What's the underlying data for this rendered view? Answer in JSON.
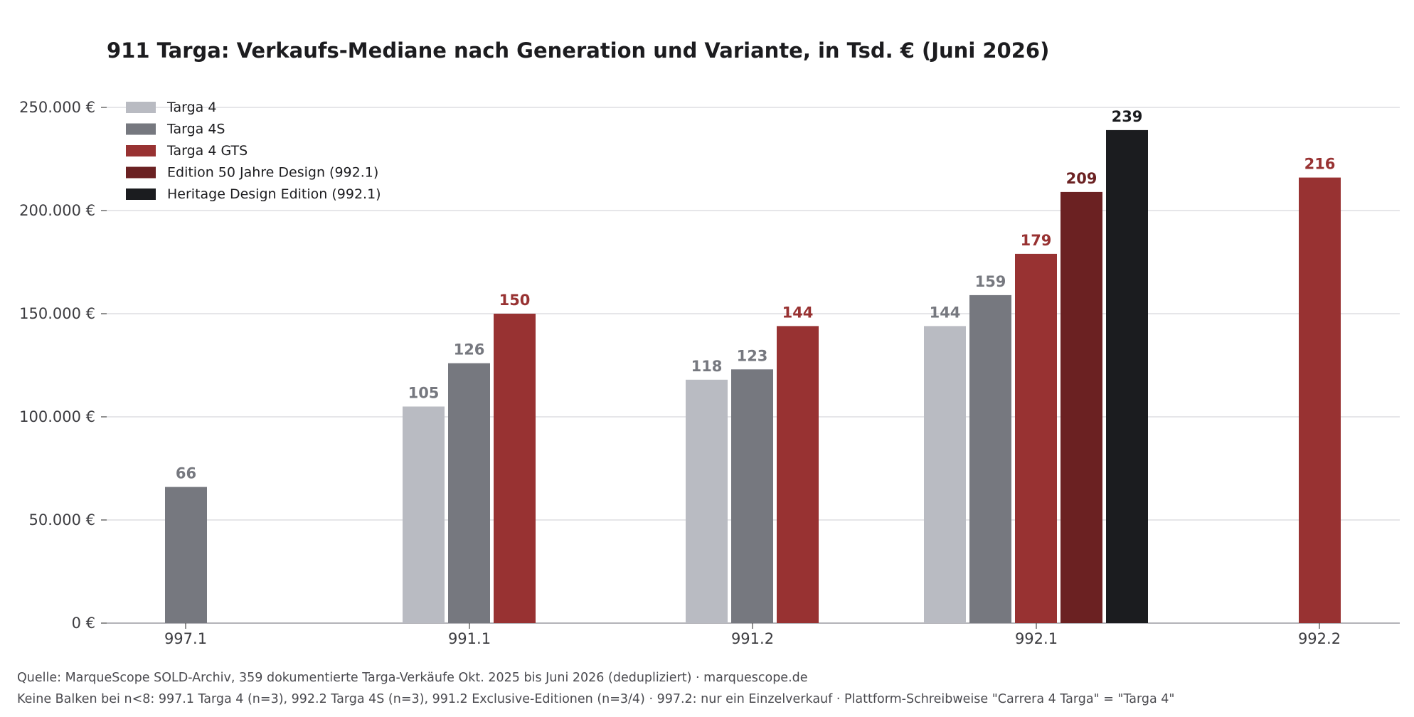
{
  "chart_data": {
    "type": "bar",
    "title": "911 Targa: Verkaufs-Mediane nach Generation und Variante, in Tsd. € (Juni 2026)",
    "xlabel": "",
    "ylabel": "",
    "ylim": [
      0,
      250000
    ],
    "y_ticks": [
      0,
      50000,
      100000,
      150000,
      200000,
      250000
    ],
    "y_tick_labels": [
      "0 €",
      "50.000 €",
      "100.000 €",
      "150.000 €",
      "200.000 €",
      "250.000 €"
    ],
    "grid": true,
    "legend_position": "top-left",
    "categories": [
      "997.1",
      "991.1",
      "991.2",
      "992.1",
      "992.2"
    ],
    "series": [
      {
        "name": "Targa 4",
        "color": "#b9bbc2",
        "label_color": "#76787f",
        "values": [
          null,
          105,
          118,
          144,
          null
        ]
      },
      {
        "name": "Targa 4S",
        "color": "#76787f",
        "label_color": "#76787f",
        "values": [
          66,
          126,
          123,
          159,
          null
        ]
      },
      {
        "name": "Targa 4 GTS",
        "color": "#983232",
        "label_color": "#983232",
        "values": [
          null,
          150,
          144,
          179,
          216
        ]
      },
      {
        "name": "Edition 50 Jahre Design (992.1)",
        "color": "#6b2122",
        "label_color": "#6b2122",
        "values": [
          null,
          null,
          null,
          209,
          null
        ]
      },
      {
        "name": "Heritage Design Edition (992.1)",
        "color": "#1b1c1f",
        "label_color": "#1b1c1f",
        "values": [
          null,
          null,
          null,
          239,
          null
        ]
      }
    ]
  },
  "footnotes": [
    "Quelle: MarqueScope SOLD-Archiv, 359 dokumentierte Targa-Verkäufe Okt. 2025 bis Juni 2026 (dedupliziert) · marquescope.de",
    "Keine Balken bei n<8: 997.1 Targa 4 (n=3), 992.2 Targa 4S (n=3), 991.2 Exclusive-Editionen (n=3/4) · 997.2: nur ein Einzelverkauf · Plattform-Schreibweise \"Carrera 4 Targa\" = \"Targa 4\""
  ]
}
